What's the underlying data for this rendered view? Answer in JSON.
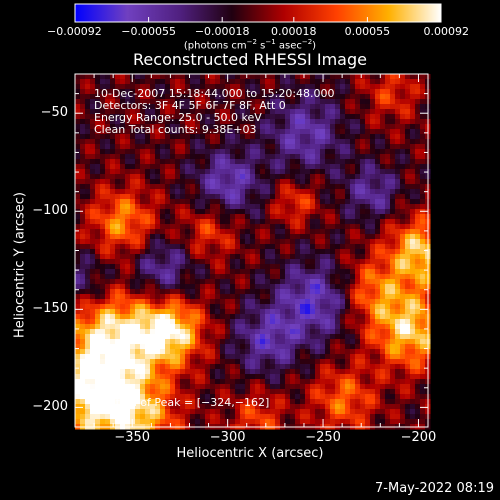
{
  "chart_data": {
    "type": "heatmap",
    "title": "Reconstructed RHESSI Image",
    "xlabel": "Heliocentric X (arcsec)",
    "ylabel": "Heliocentric Y (arcsec)",
    "xlim": [
      -380,
      -195
    ],
    "ylim": [
      -210,
      -30
    ],
    "x_ticks": [
      {
        "value": -350,
        "label": "−350"
      },
      {
        "value": -300,
        "label": "−300"
      },
      {
        "value": -250,
        "label": "−250"
      },
      {
        "value": -200,
        "label": "−200"
      }
    ],
    "y_ticks": [
      {
        "value": -50,
        "label": "−50"
      },
      {
        "value": -100,
        "label": "−100"
      },
      {
        "value": -150,
        "label": "−150"
      },
      {
        "value": -200,
        "label": "−200"
      }
    ],
    "colorbar": {
      "min": -0.00092,
      "max": 0.00092,
      "ticks": [
        {
          "value": -0.00092,
          "label": "−0.00092"
        },
        {
          "value": -0.00055,
          "label": "−0.00055"
        },
        {
          "value": -0.00018,
          "label": "−0.00018"
        },
        {
          "value": 0.00018,
          "label": "0.00018"
        },
        {
          "value": 0.00055,
          "label": "0.00055"
        },
        {
          "value": 0.00092,
          "label": "0.00092"
        }
      ],
      "unit_prefix": "(photons cm",
      "unit_exp1": "−2",
      "unit_mid1": " s",
      "unit_exp2": "−1",
      "unit_mid2": " asec",
      "unit_exp3": "−2",
      "unit_suffix": ")",
      "colormap": [
        "#0000ff",
        "#7040c0",
        "#502080",
        "#200010",
        "#b00000",
        "#ff4000",
        "#ffb000",
        "#ffffff"
      ]
    },
    "annotations": [
      "10-Dec-2007 15:18:44.000 to 15:20:48.000",
      "Detectors: 3F 4F 5F 6F 7F 8F, Att 0",
      "Energy Range: 25.0 - 50.0 keV",
      "Clean     Total counts: 9.38E+03"
    ],
    "peak_label": "Position of Peak = [−324,−162]",
    "peak": [
      -324,
      -162
    ],
    "sources": [
      {
        "x": -360,
        "y": -165,
        "amp": 0.00092,
        "sigma": 18
      },
      {
        "x": -330,
        "y": -160,
        "amp": 0.00085,
        "sigma": 12
      },
      {
        "x": -370,
        "y": -195,
        "amp": 0.00085,
        "sigma": 16
      },
      {
        "x": -345,
        "y": -205,
        "amp": 0.0006,
        "sigma": 14
      },
      {
        "x": -200,
        "y": -120,
        "amp": 0.0008,
        "sigma": 12
      },
      {
        "x": -205,
        "y": -160,
        "amp": 0.0008,
        "sigma": 14
      },
      {
        "x": -225,
        "y": -140,
        "amp": 0.0005,
        "sigma": 12
      },
      {
        "x": -240,
        "y": -195,
        "amp": 0.0005,
        "sigma": 12
      },
      {
        "x": -355,
        "y": -105,
        "amp": 0.0006,
        "sigma": 12
      },
      {
        "x": -310,
        "y": -110,
        "amp": 0.0004,
        "sigma": 10
      },
      {
        "x": -285,
        "y": -205,
        "amp": 0.0004,
        "sigma": 10
      },
      {
        "x": -215,
        "y": -40,
        "amp": 0.00035,
        "sigma": 10
      },
      {
        "x": -265,
        "y": -95,
        "amp": 0.0004,
        "sigma": 8
      },
      {
        "x": -300,
        "y": -85,
        "amp": -0.00055,
        "sigma": 12
      },
      {
        "x": -260,
        "y": -60,
        "amp": -0.0005,
        "sigma": 14
      },
      {
        "x": -255,
        "y": -145,
        "amp": -0.0006,
        "sigma": 14
      },
      {
        "x": -280,
        "y": -165,
        "amp": -0.0005,
        "sigma": 12
      },
      {
        "x": -335,
        "y": -130,
        "amp": -0.0005,
        "sigma": 12
      },
      {
        "x": -375,
        "y": -135,
        "amp": -0.0004,
        "sigma": 10
      },
      {
        "x": -225,
        "y": -90,
        "amp": -0.00045,
        "sigma": 10
      }
    ]
  },
  "footer": {
    "timestamp": "7-May-2022 08:19"
  }
}
